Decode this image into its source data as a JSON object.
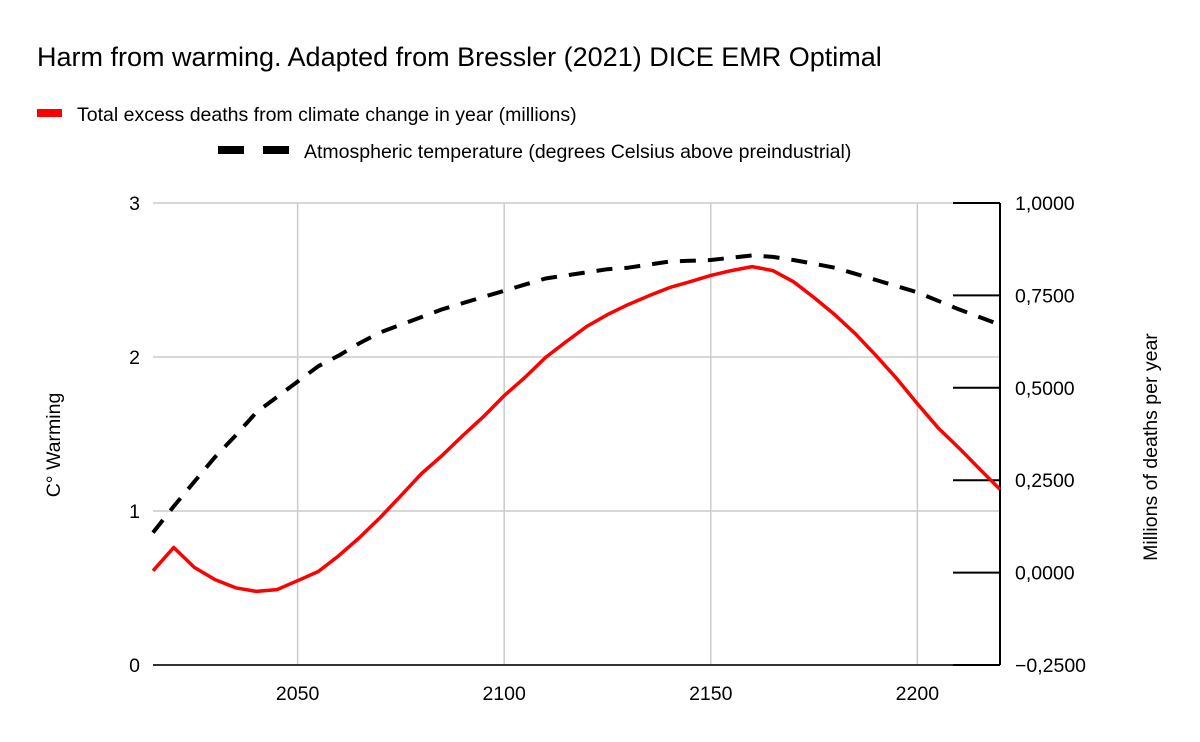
{
  "chart_data": {
    "type": "line",
    "title": "Harm from warming. Adapted from Bressler (2021) DICE EMR Optimal",
    "xlabel": "",
    "ylabel_left": "C° Warming",
    "ylabel_right": "Millions of deaths per year",
    "xlim": [
      2015,
      2220
    ],
    "ylim_left": [
      0,
      3
    ],
    "ylim_right": [
      -0.25,
      1.0
    ],
    "x_ticks": [
      2050,
      2100,
      2150,
      2200
    ],
    "x_tick_labels": [
      "2050",
      "2100",
      "2150",
      "2200"
    ],
    "y_left_ticks": [
      0,
      1,
      2,
      3
    ],
    "y_left_tick_labels": [
      "0",
      "1",
      "2",
      "3"
    ],
    "y_right_ticks": [
      -0.25,
      0,
      0.25,
      0.5,
      0.75,
      1.0
    ],
    "y_right_tick_labels": [
      "−0,2500",
      "0,0000",
      "0,2500",
      "0,5000",
      "0,7500",
      "1,0000"
    ],
    "grid": true,
    "legend_position": "top-left",
    "x": [
      2015,
      2020,
      2025,
      2030,
      2035,
      2040,
      2045,
      2050,
      2055,
      2060,
      2065,
      2070,
      2075,
      2080,
      2085,
      2090,
      2095,
      2100,
      2105,
      2110,
      2115,
      2120,
      2125,
      2130,
      2135,
      2140,
      2145,
      2150,
      2155,
      2160,
      2165,
      2170,
      2175,
      2180,
      2185,
      2190,
      2195,
      2200,
      2205,
      2210,
      2215,
      2220
    ],
    "series": [
      {
        "name": "Total excess deaths from climate change in year (millions)",
        "axis": "right",
        "color": "#ff0000",
        "style": "solid",
        "values": [
          0.005,
          0.068,
          0.014,
          -0.019,
          -0.041,
          -0.051,
          -0.046,
          -0.022,
          0.003,
          0.046,
          0.095,
          0.149,
          0.208,
          0.268,
          0.317,
          0.371,
          0.422,
          0.479,
          0.528,
          0.582,
          0.625,
          0.666,
          0.698,
          0.725,
          0.749,
          0.771,
          0.787,
          0.804,
          0.817,
          0.828,
          0.817,
          0.787,
          0.744,
          0.698,
          0.646,
          0.587,
          0.525,
          0.457,
          0.392,
          0.338,
          0.281,
          0.225
        ]
      },
      {
        "name": "Atmospheric temperature (degrees Celsius above preindustrial)",
        "axis": "left",
        "color": "#000000",
        "style": "dashed",
        "values": [
          0.86,
          1.03,
          1.19,
          1.35,
          1.49,
          1.64,
          1.74,
          1.84,
          1.94,
          2.01,
          2.09,
          2.16,
          2.21,
          2.26,
          2.31,
          2.35,
          2.39,
          2.43,
          2.47,
          2.51,
          2.53,
          2.55,
          2.57,
          2.58,
          2.6,
          2.62,
          2.625,
          2.63,
          2.645,
          2.66,
          2.65,
          2.63,
          2.605,
          2.58,
          2.54,
          2.5,
          2.46,
          2.42,
          2.365,
          2.31,
          2.26,
          2.21
        ]
      }
    ]
  }
}
